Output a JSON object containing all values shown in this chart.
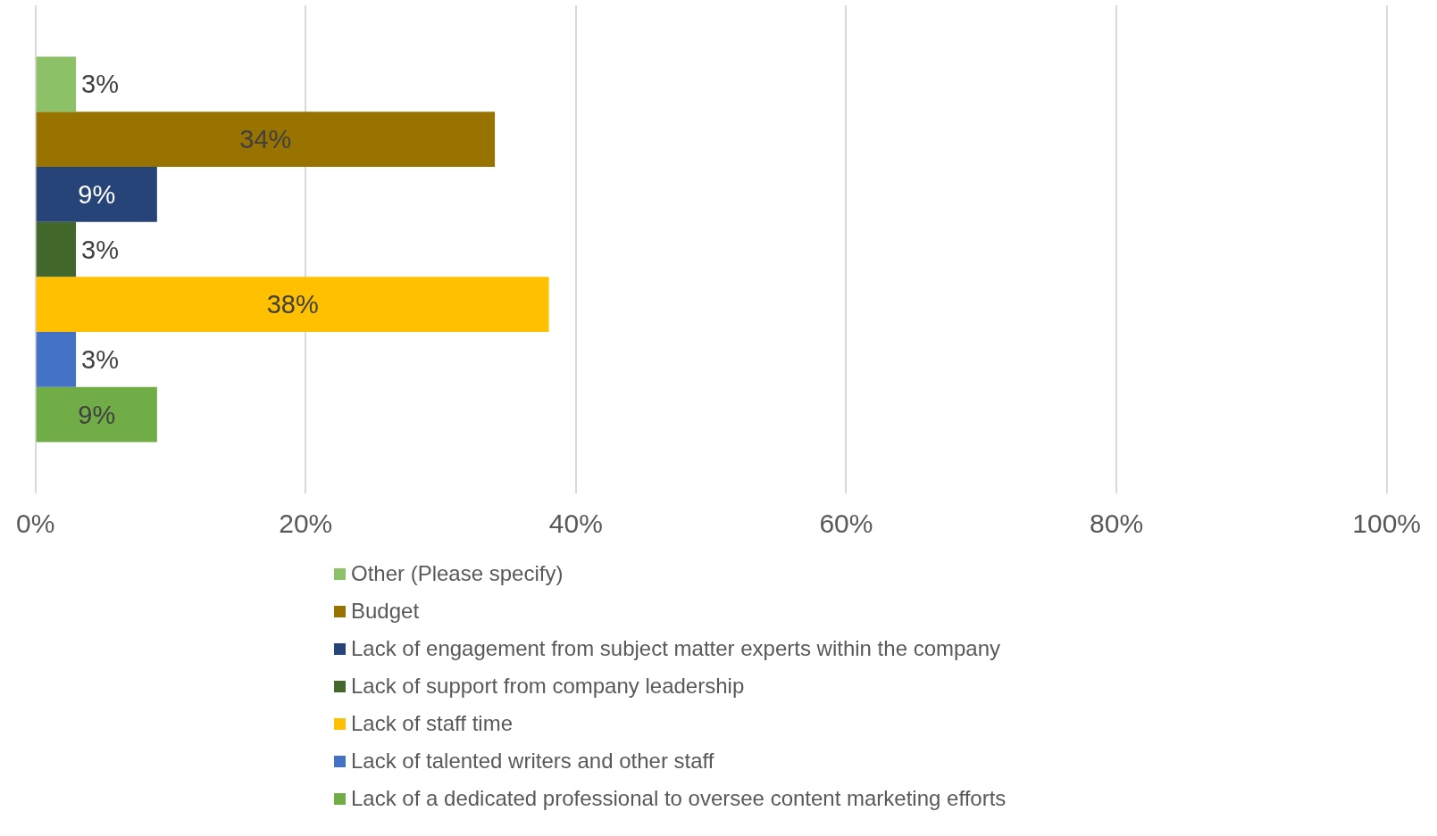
{
  "chart_data": {
    "type": "bar",
    "orientation": "horizontal",
    "categories": [
      null
    ],
    "series": [
      {
        "name": "Other (Please specify)",
        "color": "#8cc168",
        "values": [
          3
        ],
        "value_labels": [
          "3%"
        ]
      },
      {
        "name": "Budget",
        "color": "#997300",
        "values": [
          34
        ],
        "value_labels": [
          "34%"
        ]
      },
      {
        "name": "Lack of engagement from subject matter experts within the company",
        "color": "#264478",
        "values": [
          9
        ],
        "value_labels": [
          "9%"
        ]
      },
      {
        "name": "Lack of support from company leadership",
        "color": "#43682b",
        "values": [
          3
        ],
        "value_labels": [
          "3%"
        ]
      },
      {
        "name": "Lack of staff time",
        "color": "#ffc000",
        "values": [
          38
        ],
        "value_labels": [
          "38%"
        ]
      },
      {
        "name": "Lack of talented writers and other staff",
        "color": "#4472c4",
        "values": [
          3
        ],
        "value_labels": [
          "3%"
        ]
      },
      {
        "name": "Lack of a dedicated professional to oversee content marketing efforts",
        "color": "#70ad47",
        "values": [
          9
        ],
        "value_labels": [
          "9%"
        ]
      }
    ],
    "xlim": [
      0,
      100
    ],
    "xticks": [
      {
        "value": 0,
        "label": "0%"
      },
      {
        "value": 20,
        "label": "20%"
      },
      {
        "value": 40,
        "label": "40%"
      },
      {
        "value": 60,
        "label": "60%"
      },
      {
        "value": 80,
        "label": "80%"
      },
      {
        "value": 100,
        "label": "100%"
      }
    ],
    "grid": "x",
    "legend": "bottom",
    "tick_labels": "x"
  }
}
